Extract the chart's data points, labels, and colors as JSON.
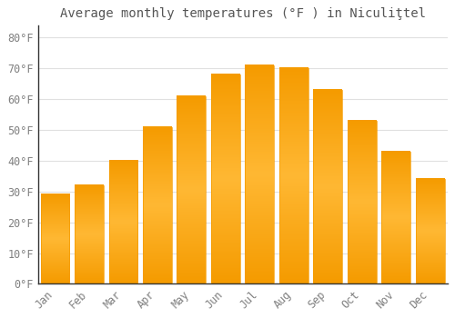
{
  "title": "Average monthly temperatures (°F ) in Niculiţtel",
  "months": [
    "Jan",
    "Feb",
    "Mar",
    "Apr",
    "May",
    "Jun",
    "Jul",
    "Aug",
    "Sep",
    "Oct",
    "Nov",
    "Dec"
  ],
  "values": [
    29,
    32,
    40,
    51,
    61,
    68,
    71,
    70,
    63,
    53,
    43,
    34
  ],
  "bar_color_light": "#FFB833",
  "bar_color_dark": "#F59B00",
  "background_color": "#FFFFFF",
  "grid_color": "#E0E0E0",
  "tick_label_color": "#808080",
  "title_color": "#555555",
  "ylim": [
    0,
    84
  ],
  "yticks": [
    0,
    10,
    20,
    30,
    40,
    50,
    60,
    70,
    80
  ],
  "title_fontsize": 10,
  "tick_fontsize": 8.5,
  "bar_width": 0.85
}
